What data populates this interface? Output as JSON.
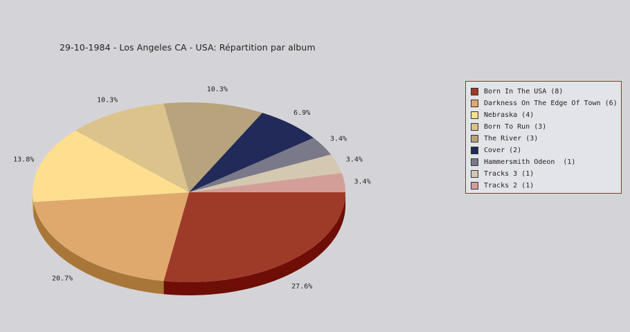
{
  "chart_data": {
    "type": "pie",
    "title": "29-10-1984 - Los Angeles CA - USA:  Répartition par album",
    "slices": [
      {
        "label": "Born In The USA",
        "count": 8,
        "legend": "Born In The USA (8)",
        "pct_label": "27.6%",
        "color": "#9e3b28",
        "side": "#6e0e06"
      },
      {
        "label": "Darkness On The Edge Of Town",
        "count": 6,
        "legend": "Darkness On The Edge Of Town (6)",
        "pct_label": "20.7%",
        "color": "#dfa96d",
        "side": "#a97639"
      },
      {
        "label": "Nebraska",
        "count": 4,
        "legend": "Nebraska (4)",
        "pct_label": "13.8%",
        "color": "#fddf8f",
        "side": "#c9ac5c"
      },
      {
        "label": "Born To Run",
        "count": 3,
        "legend": "Born To Run (3)",
        "pct_label": "10.3%",
        "color": "#dcc38b",
        "side": "#a9905a"
      },
      {
        "label": "The River",
        "count": 3,
        "legend": "The River (3)",
        "pct_label": "10.3%",
        "color": "#b7a47c",
        "side": "#84714c"
      },
      {
        "label": "Cover",
        "count": 2,
        "legend": "Cover (2)",
        "pct_label": "6.9%",
        "color": "#212a58",
        "side": "#0d1232"
      },
      {
        "label": "Hammersmith Odeon",
        "count": 1,
        "legend": "Hammersmith Odeon  (1)",
        "pct_label": "3.4%",
        "color": "#7a7989",
        "side": "#4c4b5a"
      },
      {
        "label": "Tracks 3",
        "count": 1,
        "legend": "Tracks 3 (1)",
        "pct_label": "3.4%",
        "color": "#d4c8b0",
        "side": "#a39780"
      },
      {
        "label": "Tracks 2",
        "count": 1,
        "legend": "Tracks 2 (1)",
        "pct_label": "3.4%",
        "color": "#d49e98",
        "side": "#a46e68"
      }
    ],
    "legend_position": "right"
  }
}
